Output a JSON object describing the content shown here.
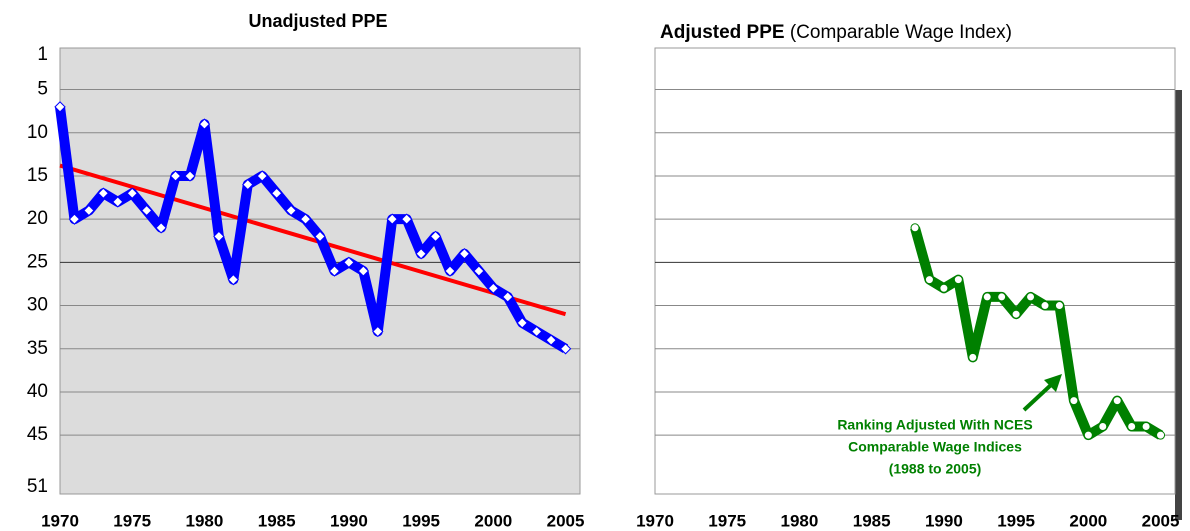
{
  "chart_data": [
    {
      "type": "line",
      "title": "Unadjusted PPE",
      "x": [
        1970,
        1971,
        1972,
        1973,
        1974,
        1975,
        1976,
        1977,
        1978,
        1979,
        1980,
        1981,
        1982,
        1983,
        1984,
        1985,
        1986,
        1987,
        1988,
        1989,
        1990,
        1991,
        1992,
        1993,
        1994,
        1995,
        1996,
        1997,
        1998,
        1999,
        2000,
        2001,
        2002,
        2003,
        2004,
        2005
      ],
      "values": [
        7,
        20,
        19,
        17,
        18,
        17,
        19,
        21,
        15,
        15,
        9,
        22,
        27,
        16,
        15,
        17,
        19,
        20,
        22,
        26,
        25,
        26,
        33,
        20,
        20,
        24,
        22,
        26,
        24,
        26,
        28,
        29,
        32,
        33,
        34,
        35
      ],
      "color": "#0000ff",
      "trend": {
        "x": [
          1970,
          2005
        ],
        "values": [
          13.8,
          31
        ],
        "color": "#ff0000"
      },
      "xlim": [
        1970,
        2006
      ],
      "xticks": [
        1970,
        1975,
        1980,
        1985,
        1990,
        1995,
        2000,
        2005
      ],
      "ylim": [
        1,
        51
      ],
      "yticks": [
        1,
        5,
        10,
        15,
        20,
        25,
        30,
        35,
        40,
        45,
        51
      ],
      "y_reversed": true,
      "grid": true,
      "x_axis_at": 25,
      "background": "#dcdcdc"
    },
    {
      "type": "line",
      "title": "Adjusted PPE",
      "subtitle": "(Comparable Wage Index)",
      "x": [
        1988,
        1989,
        1990,
        1991,
        1992,
        1993,
        1994,
        1995,
        1996,
        1997,
        1998,
        1999,
        2000,
        2001,
        2002,
        2003,
        2004,
        2005
      ],
      "values": [
        21,
        27,
        28,
        27,
        36,
        29,
        29,
        31,
        29,
        30,
        30,
        41,
        45,
        44,
        41,
        44,
        44,
        45
      ],
      "color": "#008000",
      "xlim": [
        1970,
        2006
      ],
      "xticks": [
        1970,
        1975,
        1980,
        1985,
        1990,
        1995,
        2000,
        2005
      ],
      "ylim": [
        1,
        51
      ],
      "ygrid": [
        5,
        10,
        15,
        20,
        25,
        30,
        35,
        40,
        45
      ],
      "y_reversed": true,
      "x_axis_at": 25,
      "annotation": [
        "Ranking Adjusted With NCES",
        "Comparable Wage Indices",
        "(1988 to 2005)"
      ],
      "background": "#ffffff"
    }
  ]
}
